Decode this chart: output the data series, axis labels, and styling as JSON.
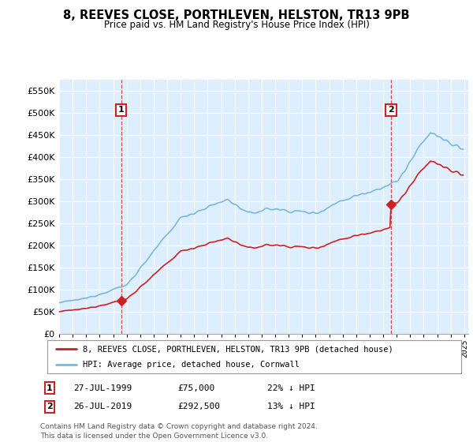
{
  "title": "8, REEVES CLOSE, PORTHLEVEN, HELSTON, TR13 9PB",
  "subtitle": "Price paid vs. HM Land Registry's House Price Index (HPI)",
  "hpi_label": "HPI: Average price, detached house, Cornwall",
  "property_label": "8, REEVES CLOSE, PORTHLEVEN, HELSTON, TR13 9PB (detached house)",
  "annotation1_date": "27-JUL-1999",
  "annotation1_price": 75000,
  "annotation1_hpi_text": "22% ↓ HPI",
  "annotation2_date": "26-JUL-2019",
  "annotation2_price": 292500,
  "annotation2_hpi_text": "13% ↓ HPI",
  "hpi_color": "#7ab8d9",
  "property_color": "#cc2222",
  "annotation_box_edge": "#cc2222",
  "vline_color": "#cc2222",
  "ylim": [
    0,
    575000
  ],
  "yticks": [
    0,
    50000,
    100000,
    150000,
    200000,
    250000,
    300000,
    350000,
    400000,
    450000,
    500000,
    550000
  ],
  "sale_years": [
    1999.583,
    2019.583
  ],
  "sale_prices": [
    75000,
    292500
  ],
  "footer": "Contains HM Land Registry data © Crown copyright and database right 2024.\nThis data is licensed under the Open Government Licence v3.0.",
  "background_color": "#ffffff",
  "chart_bg_color": "#ddeeff",
  "grid_color": "#ffffff"
}
